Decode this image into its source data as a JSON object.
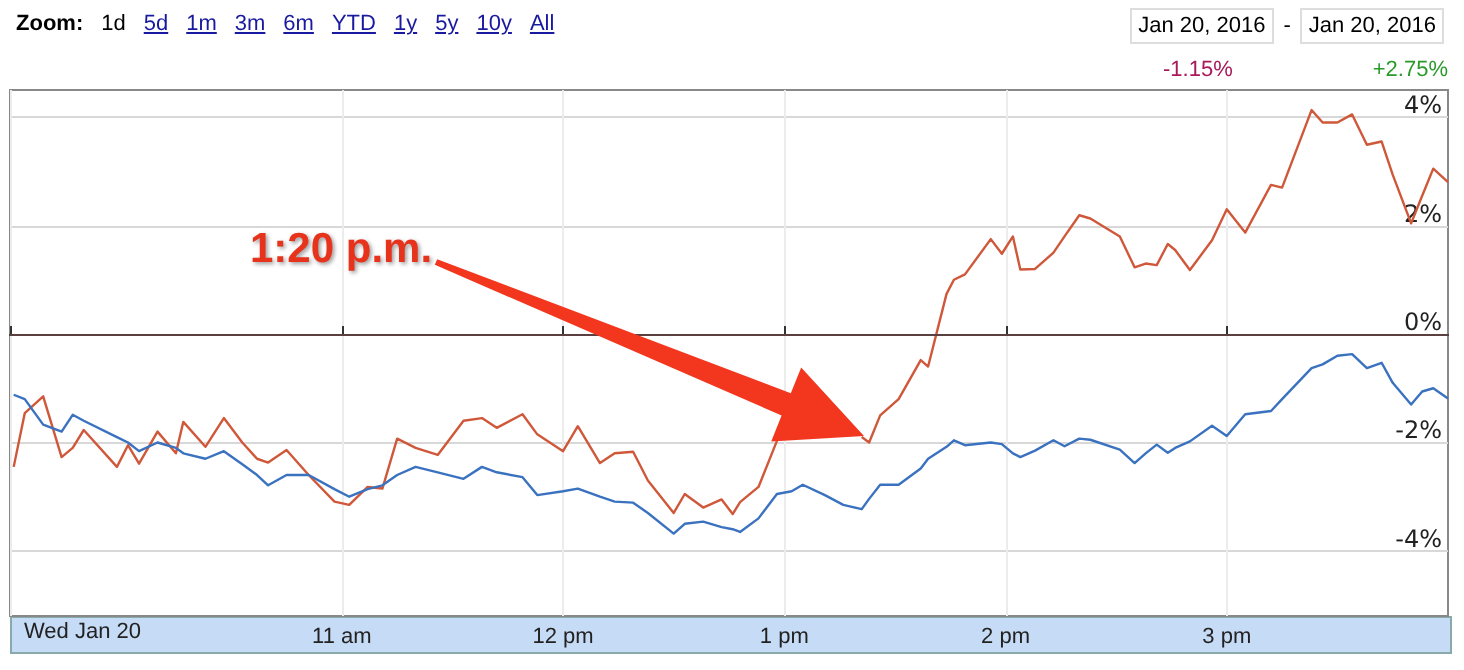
{
  "chart_data": {
    "type": "line",
    "x": [
      "2016-01-20T09:31",
      "2016-01-20T09:34",
      "2016-01-20T09:39",
      "2016-01-20T09:44",
      "2016-01-20T09:47",
      "2016-01-20T09:50",
      "2016-01-20T09:59",
      "2016-01-20T10:02",
      "2016-01-20T10:05",
      "2016-01-20T10:10",
      "2016-01-20T10:15",
      "2016-01-20T10:17",
      "2016-01-20T10:23",
      "2016-01-20T10:28",
      "2016-01-20T10:33",
      "2016-01-20T10:37",
      "2016-01-20T10:40",
      "2016-01-20T10:45",
      "2016-01-20T10:51",
      "2016-01-20T10:58",
      "2016-01-20T11:02",
      "2016-01-20T11:07",
      "2016-01-20T11:11",
      "2016-01-20T11:15",
      "2016-01-20T11:20",
      "2016-01-20T11:26",
      "2016-01-20T11:33",
      "2016-01-20T11:38",
      "2016-01-20T11:42",
      "2016-01-20T11:49",
      "2016-01-20T11:53",
      "2016-01-20T12:00",
      "2016-01-20T12:04",
      "2016-01-20T12:10",
      "2016-01-20T12:14",
      "2016-01-20T12:19",
      "2016-01-20T12:23",
      "2016-01-20T12:30",
      "2016-01-20T12:33",
      "2016-01-20T12:38",
      "2016-01-20T12:43",
      "2016-01-20T12:46",
      "2016-01-20T12:48",
      "2016-01-20T12:53",
      "2016-01-20T12:58",
      "2016-01-20T13:02",
      "2016-01-20T13:05",
      "2016-01-20T13:11",
      "2016-01-20T13:16",
      "2016-01-20T13:21",
      "2016-01-20T13:23",
      "2016-01-20T13:26",
      "2016-01-20T13:31",
      "2016-01-20T13:37",
      "2016-01-20T13:39",
      "2016-01-20T13:44",
      "2016-01-20T13:46",
      "2016-01-20T13:49",
      "2016-01-20T13:56",
      "2016-01-20T13:59",
      "2016-01-20T14:02",
      "2016-01-20T14:04",
      "2016-01-20T14:08",
      "2016-01-20T14:13",
      "2016-01-20T14:16",
      "2016-01-20T14:20",
      "2016-01-20T14:23",
      "2016-01-20T14:31",
      "2016-01-20T14:35",
      "2016-01-20T14:38",
      "2016-01-20T14:41",
      "2016-01-20T14:44",
      "2016-01-20T14:46",
      "2016-01-20T14:50",
      "2016-01-20T14:56",
      "2016-01-20T15:00",
      "2016-01-20T15:05",
      "2016-01-20T15:12",
      "2016-01-20T15:15",
      "2016-01-20T15:23",
      "2016-01-20T15:26",
      "2016-01-20T15:30",
      "2016-01-20T15:34",
      "2016-01-20T15:38",
      "2016-01-20T15:42",
      "2016-01-20T15:45",
      "2016-01-20T15:50",
      "2016-01-20T15:53",
      "2016-01-20T15:56",
      "2016-01-20T16:00"
    ],
    "series": [
      {
        "color": "#d0583a",
        "values": [
          -2.45,
          -1.46,
          -1.15,
          -2.27,
          -2.1,
          -1.77,
          -2.45,
          -2.05,
          -2.39,
          -1.8,
          -2.2,
          -1.62,
          -2.08,
          -1.55,
          -2.0,
          -2.3,
          -2.37,
          -2.14,
          -2.6,
          -3.09,
          -3.15,
          -2.82,
          -2.85,
          -1.93,
          -2.1,
          -2.23,
          -1.6,
          -1.55,
          -1.73,
          -1.48,
          -1.85,
          -2.16,
          -1.7,
          -2.38,
          -2.2,
          -2.17,
          -2.7,
          -3.3,
          -2.95,
          -3.2,
          -3.05,
          -3.32,
          -3.1,
          -2.82,
          -1.97,
          null,
          null,
          null,
          null,
          -1.9,
          -2.0,
          -1.5,
          -1.2,
          -0.48,
          -0.6,
          0.74,
          1.0,
          1.1,
          1.75,
          1.48,
          1.8,
          1.19,
          1.2,
          1.5,
          1.8,
          2.19,
          2.13,
          1.8,
          1.23,
          1.3,
          1.27,
          1.66,
          1.55,
          1.18,
          1.73,
          2.3,
          1.87,
          2.75,
          2.7,
          4.13,
          3.9,
          3.9,
          4.05,
          3.49,
          3.55,
          2.94,
          2.04,
          2.55,
          3.05,
          2.8
        ]
      },
      {
        "color": "#3a72c0",
        "values": [
          -1.12,
          -1.2,
          -1.67,
          -1.8,
          -1.49,
          -1.6,
          -1.9,
          -2.0,
          -2.16,
          -2.0,
          -2.1,
          -2.2,
          -2.3,
          -2.16,
          -2.4,
          -2.6,
          -2.79,
          -2.6,
          -2.6,
          -2.86,
          -3.0,
          -2.86,
          -2.79,
          -2.6,
          -2.45,
          -2.55,
          -2.67,
          -2.45,
          -2.55,
          -2.64,
          -2.97,
          -2.9,
          -2.85,
          -3.0,
          -3.09,
          -3.11,
          -3.3,
          -3.68,
          -3.5,
          -3.46,
          -3.56,
          -3.6,
          -3.65,
          -3.4,
          -2.95,
          -2.9,
          -2.78,
          -2.97,
          -3.15,
          -3.23,
          -3.04,
          -2.78,
          -2.78,
          -2.48,
          -2.3,
          -2.08,
          -1.96,
          -2.05,
          -2.0,
          -2.03,
          -2.2,
          -2.27,
          -2.15,
          -1.96,
          -2.07,
          -1.93,
          -1.95,
          -2.13,
          -2.38,
          -2.2,
          -2.04,
          -2.19,
          -2.1,
          -1.98,
          -1.69,
          -1.88,
          -1.48,
          -1.42,
          -1.2,
          -0.63,
          -0.56,
          -0.4,
          -0.37,
          -0.63,
          -0.53,
          -0.9,
          -1.3,
          -1.06,
          -1.0,
          -1.19
        ]
      }
    ],
    "xlim": [
      "2016-01-20T09:30",
      "2016-01-20T16:00"
    ],
    "xticks": [
      {
        "value": "2016-01-20T09:30",
        "label": null
      },
      {
        "value": "2016-01-20T11:00",
        "label": "11 am"
      },
      {
        "value": "2016-01-20T12:00",
        "label": "12 pm"
      },
      {
        "value": "2016-01-20T13:00",
        "label": "1 pm"
      },
      {
        "value": "2016-01-20T14:00",
        "label": "2 pm"
      },
      {
        "value": "2016-01-20T15:00",
        "label": "3 pm"
      }
    ],
    "ylim": [
      -5.2,
      4.5
    ],
    "yticks": [
      {
        "value": -4,
        "label": "-4%"
      },
      {
        "value": -2,
        "label": "-2%"
      },
      {
        "value": 0,
        "label": "0%"
      },
      {
        "value": 2,
        "label": "2%"
      },
      {
        "value": 4,
        "label": "4%"
      }
    ],
    "ref_lines": [
      {
        "axis": "y",
        "value": 0,
        "color": "#5a4040"
      }
    ],
    "grid": true,
    "marker": "none",
    "line_style": "solid",
    "annotations": [
      "1:20 p.m.",
      "Zoom:",
      "1d",
      "5d",
      "1m",
      "3m",
      "6m",
      "YTD",
      "1y",
      "5y",
      "10y",
      "All",
      "Jan 20, 2016",
      "-",
      "Jan 20, 2016",
      "-1.15%",
      "+2.75%",
      "Wed Jan 20"
    ]
  }
}
